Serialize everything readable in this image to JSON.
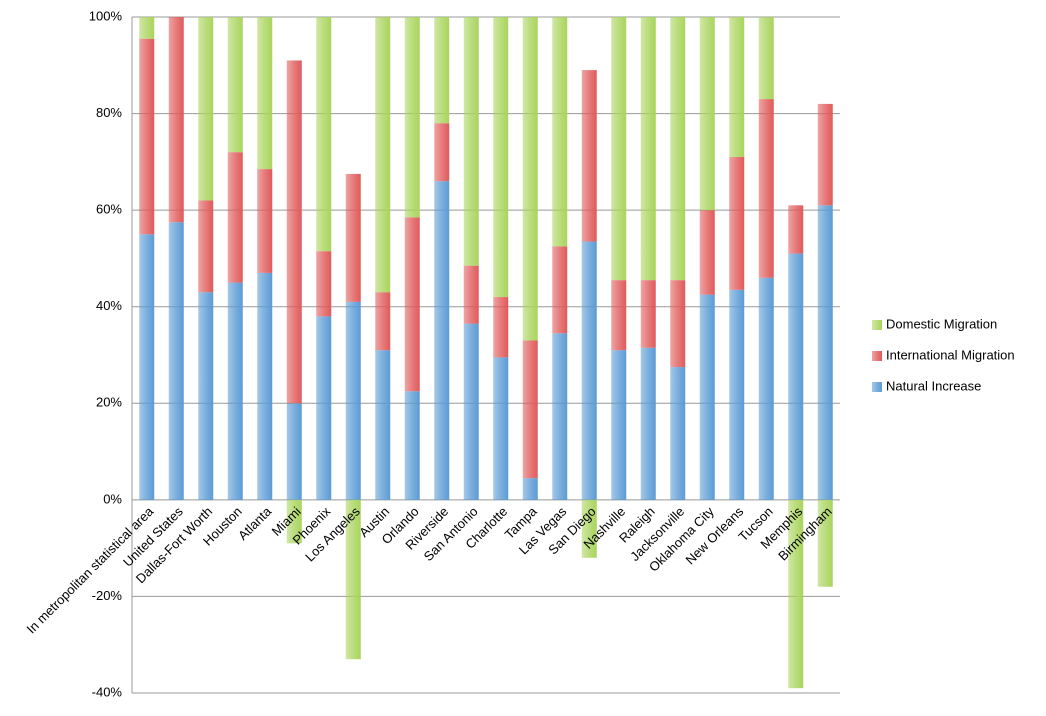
{
  "chart_data": {
    "type": "stacked_bar",
    "categories": [
      "In metropolitan statistical area",
      "United States",
      "Dallas-Fort Worth",
      "Houston",
      "Atlanta",
      "Miami",
      "Phoenix",
      "Los Angeles",
      "Austin",
      "Orlando",
      "Riverside",
      "San Antonio",
      "Charlotte",
      "Tampa",
      "Las Vegas",
      "San Diego",
      "Nashville",
      "Raleigh",
      "Jacksonville",
      "Oklahoma City",
      "New Orleans",
      "Tucson",
      "Memphis",
      "Birmingham"
    ],
    "series": [
      {
        "name": "Natural Increase",
        "color": "#5b9bd5",
        "values": [
          55,
          57.5,
          43,
          45,
          47,
          20,
          38,
          41,
          31,
          22.5,
          66,
          36.5,
          29.5,
          4.5,
          34.5,
          53.5,
          31,
          31.5,
          27.5,
          42.5,
          43.5,
          46,
          51,
          61
        ]
      },
      {
        "name": "International Migration",
        "color": "#e05a5a",
        "values": [
          40.5,
          42.5,
          19,
          27,
          21.5,
          71,
          13.5,
          26.5,
          12,
          36,
          12,
          12,
          12.5,
          28.5,
          18,
          35.5,
          14.5,
          14,
          18,
          17.5,
          27.5,
          37,
          10,
          21
        ]
      },
      {
        "name": "Domestic Migration",
        "color": "#a9d45c",
        "values": [
          4.5,
          0,
          38,
          28,
          31.5,
          -9,
          48.5,
          -33,
          57,
          41.5,
          22,
          51.5,
          58,
          67,
          47.5,
          -12,
          54.5,
          54.5,
          54.5,
          40,
          29,
          17,
          -39,
          -18
        ]
      }
    ],
    "ylim": [
      -40,
      100
    ],
    "yticks": [
      {
        "value": -40,
        "label": "-40%"
      },
      {
        "value": -20,
        "label": "-20%"
      },
      {
        "value": 0,
        "label": "0%"
      },
      {
        "value": 20,
        "label": "20%"
      },
      {
        "value": 40,
        "label": "40%"
      },
      {
        "value": 60,
        "label": "60%"
      },
      {
        "value": 80,
        "label": "80%"
      },
      {
        "value": 100,
        "label": "100%"
      }
    ],
    "grid": true,
    "legend": "right"
  }
}
